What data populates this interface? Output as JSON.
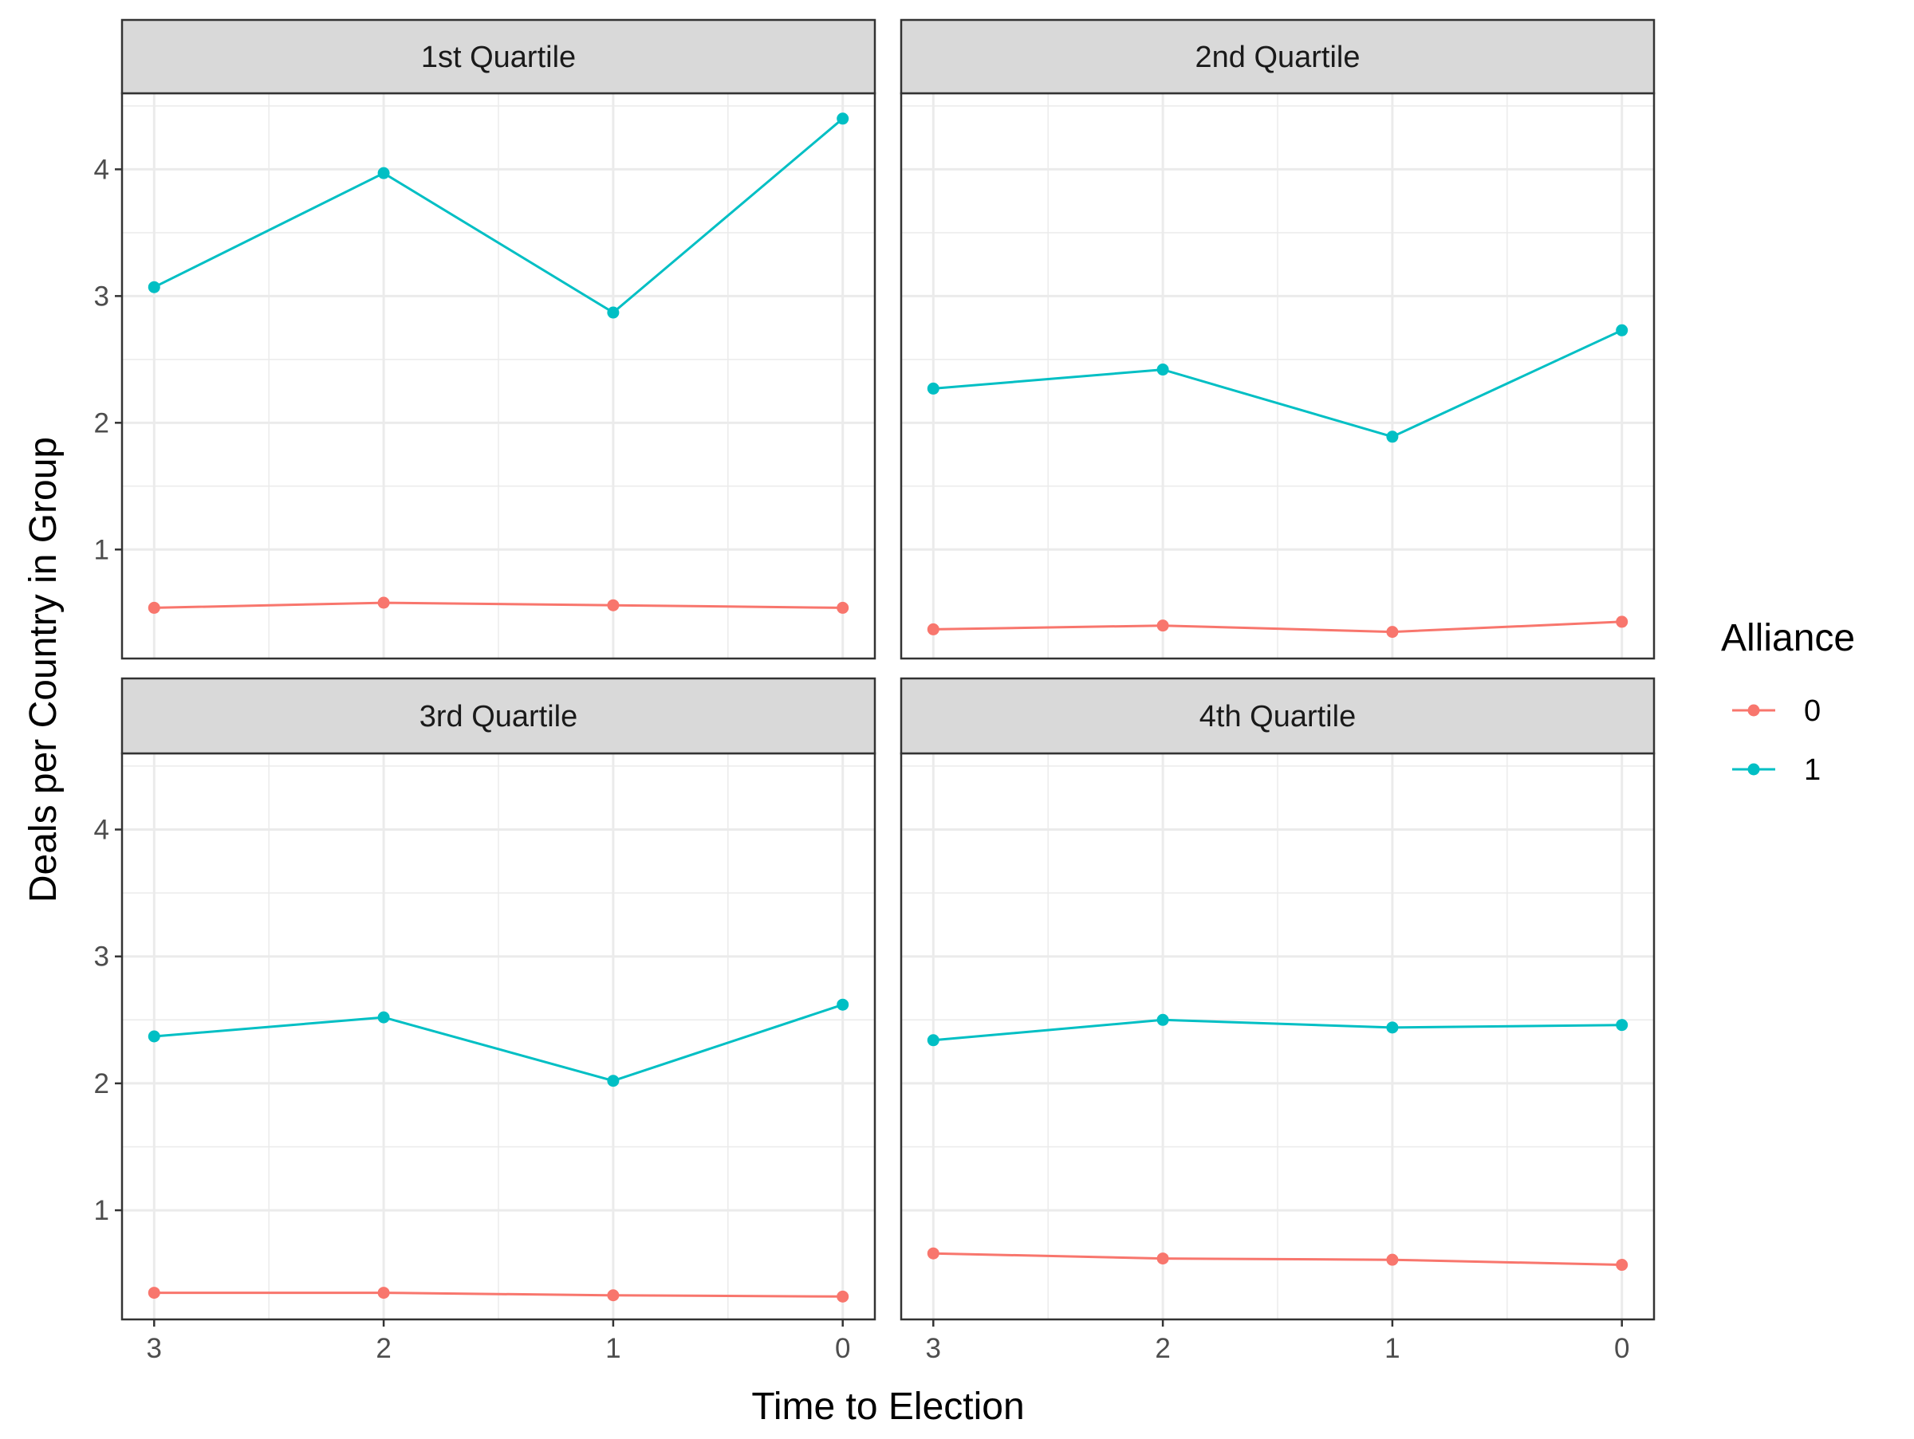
{
  "chart_data": {
    "type": "line",
    "facet": "wrap",
    "ncol": 2,
    "xlabel": "Time to Election",
    "ylabel": "Deals per Country in Group",
    "x_ticks": [
      "3",
      "2",
      "1",
      "0"
    ],
    "x_values": [
      3,
      2,
      1,
      0
    ],
    "x_reversed": true,
    "xlim": [
      3.14,
      -0.14
    ],
    "y_ticks": [
      1,
      2,
      3,
      4
    ],
    "y_minor": [
      1.5,
      2.5,
      3.5,
      4.5
    ],
    "ylim": [
      0.14,
      4.6
    ],
    "grid": true,
    "legend": {
      "title": "Alliance",
      "position": "right",
      "entries": [
        {
          "label": "0",
          "color": "#F8766D"
        },
        {
          "label": "1",
          "color": "#00BFC4"
        }
      ]
    },
    "panels": [
      {
        "title": "1st Quartile",
        "series": [
          {
            "name": "0",
            "color": "#F8766D",
            "values": [
              0.54,
              0.58,
              0.56,
              0.54
            ]
          },
          {
            "name": "1",
            "color": "#00BFC4",
            "values": [
              3.07,
              3.97,
              2.87,
              4.4
            ]
          }
        ]
      },
      {
        "title": "2nd Quartile",
        "series": [
          {
            "name": "0",
            "color": "#F8766D",
            "values": [
              0.37,
              0.4,
              0.35,
              0.43
            ]
          },
          {
            "name": "1",
            "color": "#00BFC4",
            "values": [
              2.27,
              2.42,
              1.89,
              2.73
            ]
          }
        ]
      },
      {
        "title": "3rd Quartile",
        "series": [
          {
            "name": "0",
            "color": "#F8766D",
            "values": [
              0.35,
              0.35,
              0.33,
              0.32
            ]
          },
          {
            "name": "1",
            "color": "#00BFC4",
            "values": [
              2.37,
              2.52,
              2.02,
              2.62
            ]
          }
        ]
      },
      {
        "title": "4th Quartile",
        "series": [
          {
            "name": "0",
            "color": "#F8766D",
            "values": [
              0.66,
              0.62,
              0.61,
              0.57
            ]
          },
          {
            "name": "1",
            "color": "#00BFC4",
            "values": [
              2.34,
              2.5,
              2.44,
              2.46
            ]
          }
        ]
      }
    ]
  }
}
